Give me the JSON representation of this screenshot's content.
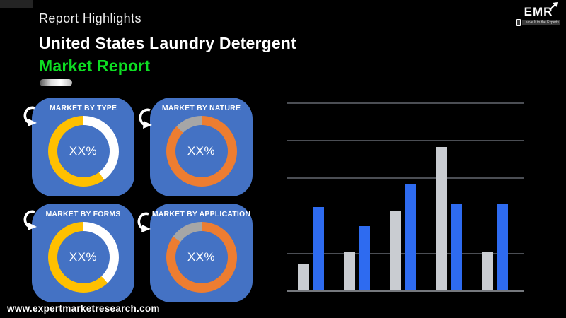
{
  "header": {
    "eyebrow": "Report Highlights",
    "title_line1": "United States Laundry Detergent",
    "title_line2": "Market Report",
    "accent_color": "#0ddd22"
  },
  "logo": {
    "text": "EMR",
    "tagline": "Leave It to the Experts"
  },
  "colors": {
    "card_bg": "#4472C4",
    "bar_gray": "#C9CCD1",
    "bar_blue": "#2E6BF0",
    "donut_gold": "#FFC000",
    "donut_orange": "#ED7D31",
    "donut_gray": "#A6A6A6",
    "donut_white": "#FFFFFF"
  },
  "cards": [
    {
      "label": "MARKET BY TYPE",
      "center": "XX%",
      "segments": [
        {
          "color": "#FFFFFF",
          "pct": 40
        },
        {
          "color": "#FFC000",
          "pct": 60
        }
      ]
    },
    {
      "label": "MARKET BY NATURE",
      "center": "XX%",
      "segments": [
        {
          "color": "#ED7D31",
          "pct": 87.5
        },
        {
          "color": "#A6A6A6",
          "pct": 12.5
        }
      ]
    },
    {
      "label": "MARKET BY FORMS",
      "center": "XX%",
      "segments": [
        {
          "color": "#FFFFFF",
          "pct": 38
        },
        {
          "color": "#FFC000",
          "pct": 62
        }
      ]
    },
    {
      "label": "MARKET BY APPLICATION",
      "center": "XX%",
      "segments": [
        {
          "color": "#ED7D31",
          "pct": 85
        },
        {
          "color": "#A6A6A6",
          "pct": 15
        }
      ]
    }
  ],
  "chart_data": {
    "type": "bar",
    "title": "",
    "xlabel": "",
    "ylabel": "",
    "categories": [
      "",
      "",
      "",
      "",
      ""
    ],
    "series": [
      {
        "name": "gray-series",
        "color": "#C9CCD1",
        "values": [
          0.7,
          1.0,
          2.1,
          3.8,
          1.0
        ]
      },
      {
        "name": "blue-series",
        "color": "#2E6BF0",
        "values": [
          2.2,
          1.7,
          2.8,
          2.3,
          2.3
        ]
      }
    ],
    "ylim": [
      0,
      5
    ],
    "gridline_count": 6,
    "grid": true,
    "legend": false,
    "axis_tick_labels_visible": false
  },
  "footer": {
    "website": "www.expertmarketresearch.com"
  }
}
